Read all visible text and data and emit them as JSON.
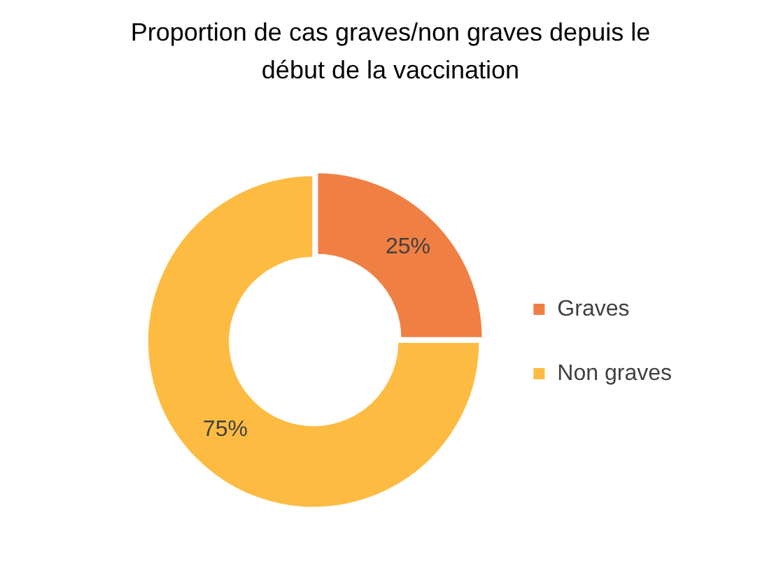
{
  "chart_data": {
    "type": "donut",
    "title": "Proportion de cas graves/non graves depuis le début de la vaccination",
    "categories": [
      "Graves",
      "Non graves"
    ],
    "values": [
      25,
      75
    ],
    "colors": [
      "#f07f43",
      "#fdbb42"
    ],
    "value_labels": [
      "25%",
      "75%"
    ],
    "legend": "right"
  }
}
